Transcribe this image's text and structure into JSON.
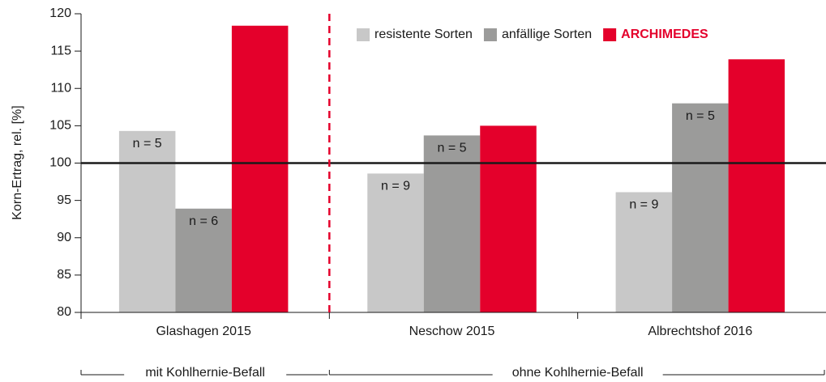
{
  "chart_data": {
    "type": "bar",
    "y_label": "Korn-Ertrag, rel. [%]",
    "categories": [
      "Glashagen 2015",
      "Neschow 2015",
      "Albrechtshof 2016"
    ],
    "series": [
      {
        "name": "resistente Sorten",
        "color": "#c8c8c8",
        "values": [
          104.3,
          98.6,
          96.1
        ],
        "bar_labels": [
          "n = 5",
          "n = 9",
          "n = 9"
        ]
      },
      {
        "name": "anfällige Sorten",
        "color": "#9b9b9a",
        "values": [
          93.9,
          103.7,
          108.0
        ],
        "bar_labels": [
          "n = 6",
          "n = 5",
          "n = 5"
        ]
      },
      {
        "name": "ARCHIMEDES",
        "color": "#e4002b",
        "values": [
          118.4,
          105.0,
          113.9
        ]
      }
    ],
    "ylim": [
      80,
      120
    ],
    "yticks": [
      80,
      85,
      90,
      95,
      100,
      105,
      110,
      115,
      120
    ],
    "reference_line": 100,
    "groups": [
      {
        "label": "mit Kohlhernie-Befall",
        "span": 1
      },
      {
        "label": "ohne Kohlhernie-Befall",
        "span": 2
      }
    ],
    "legend": "top-right",
    "grid": false
  }
}
